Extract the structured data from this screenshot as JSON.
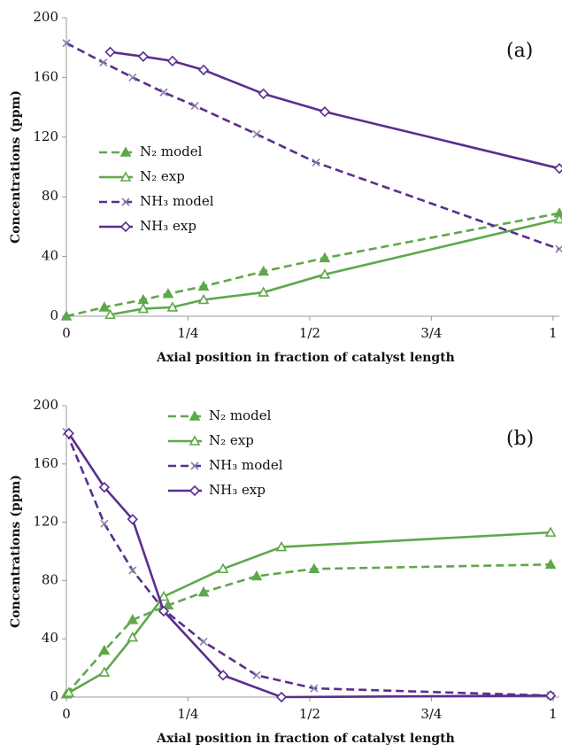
{
  "chart_data": [
    {
      "type": "line",
      "annotation": "(a)",
      "y_label": "Concentrations (ppm)",
      "x_label": "Axial position in fraction of catalyst length",
      "xlim": [
        0,
        1.013
      ],
      "ylim": [
        0,
        200
      ],
      "xticks": [
        0,
        {
          "value": 0.25,
          "label": "1/4"
        },
        {
          "value": 0.5,
          "label": "1/2"
        },
        {
          "value": 0.75,
          "label": "3/4"
        },
        1
      ],
      "yticks": [
        0,
        40,
        80,
        120,
        160,
        200
      ],
      "grid": false,
      "legend_position": "center left",
      "series": [
        {
          "name": "N₂ model",
          "color": "#5fa84a",
          "dash": true,
          "marker": "star",
          "x": [
            0,
            0.078,
            0.158,
            0.209,
            0.282,
            0.405,
            0.531,
            1.013
          ],
          "values": [
            0,
            6,
            11,
            15,
            20,
            30,
            39,
            69
          ]
        },
        {
          "name": "N₂ exp",
          "color": "#5fa84a",
          "dash": false,
          "marker": "triangle",
          "x": [
            0.09,
            0.158,
            0.218,
            0.282,
            0.405,
            0.531,
            1.013
          ],
          "values": [
            1,
            5,
            6,
            11,
            16,
            28,
            65
          ]
        },
        {
          "name": "NH₃ model",
          "color": "#5b2d8e",
          "dash": true,
          "marker": "cross",
          "x": [
            0,
            0.076,
            0.136,
            0.2,
            0.264,
            0.391,
            0.513,
            1.013
          ],
          "values": [
            183,
            170,
            160,
            150,
            141,
            122,
            103,
            45
          ]
        },
        {
          "name": "NH₃ exp",
          "color": "#5b2d8e",
          "dash": false,
          "marker": "diamond",
          "x": [
            0.09,
            0.158,
            0.218,
            0.282,
            0.405,
            0.531,
            1.013
          ],
          "values": [
            177,
            174,
            171,
            165,
            149,
            137,
            99
          ]
        }
      ]
    },
    {
      "type": "line",
      "annotation": "(b)",
      "y_label": "Concentrations (ppm)",
      "x_label": "Axial position in fraction of catalyst length",
      "xlim": [
        0,
        1.013
      ],
      "ylim": [
        0,
        200
      ],
      "xticks": [
        0,
        {
          "value": 0.25,
          "label": "1/4"
        },
        {
          "value": 0.5,
          "label": "1/2"
        },
        {
          "value": 0.75,
          "label": "3/4"
        },
        1
      ],
      "yticks": [
        0,
        40,
        80,
        120,
        160,
        200
      ],
      "grid": false,
      "legend_position": "upper center",
      "series": [
        {
          "name": "N₂ model",
          "color": "#5fa84a",
          "dash": true,
          "marker": "star",
          "x": [
            0,
            0.078,
            0.136,
            0.209,
            0.282,
            0.391,
            0.509,
            0.995
          ],
          "values": [
            2,
            32,
            53,
            63,
            72,
            83,
            88,
            91
          ]
        },
        {
          "name": "N₂ exp",
          "color": "#5fa84a",
          "dash": false,
          "marker": "triangle",
          "x": [
            0.005,
            0.078,
            0.136,
            0.2,
            0.322,
            0.442,
            0.995
          ],
          "values": [
            3,
            17,
            41,
            69,
            88,
            103,
            113
          ]
        },
        {
          "name": "NH₃ model",
          "color": "#5b2d8e",
          "dash": true,
          "marker": "cross",
          "x": [
            0,
            0.078,
            0.136,
            0.2,
            0.282,
            0.391,
            0.509,
            0.995
          ],
          "values": [
            182,
            119,
            87,
            60,
            38,
            15,
            6,
            1
          ]
        },
        {
          "name": "NH₃ exp",
          "color": "#5b2d8e",
          "dash": false,
          "marker": "diamond",
          "x": [
            0.005,
            0.078,
            0.136,
            0.2,
            0.322,
            0.442,
            0.995
          ],
          "values": [
            181,
            144,
            122,
            59,
            15,
            0,
            1
          ]
        }
      ]
    }
  ]
}
